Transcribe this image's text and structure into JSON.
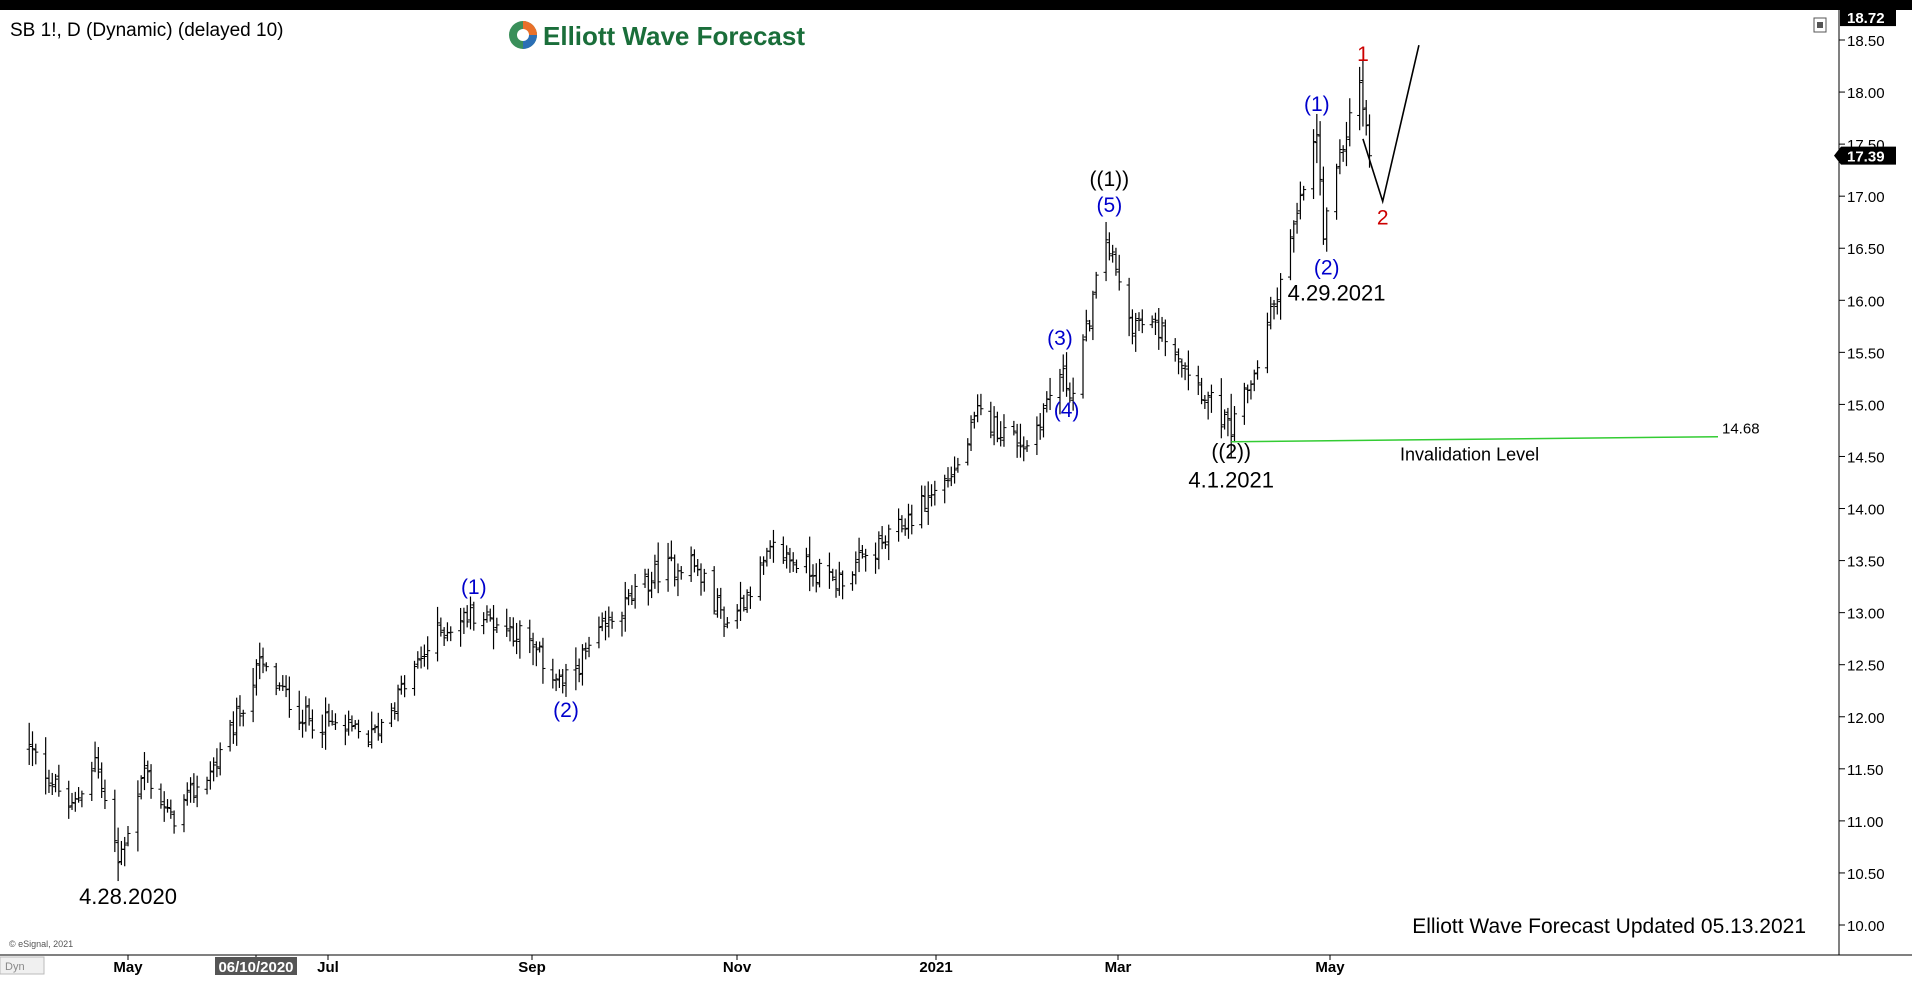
{
  "header": {
    "symbol_title": "SB 1!, D (Dynamic) (delayed 10)",
    "brand": "Elliott Wave Forecast",
    "copyright": "© eSignal, 2021",
    "updated_note": "Elliott Wave Forecast Updated 05.13.2021",
    "corner_label": "Dyn"
  },
  "colors": {
    "price_bars": "#000000",
    "wave_blue": "#0000cc",
    "wave_red": "#cc0000",
    "invalidation_line": "#33cc33",
    "brand_green": "#1a6e3a"
  },
  "chart_data": {
    "type": "bar",
    "ylim": [
      9.8,
      18.9
    ],
    "y_ticks": [
      "18.50",
      "18.00",
      "17.50",
      "17.00",
      "16.50",
      "16.00",
      "15.50",
      "15.00",
      "14.50",
      "14.00",
      "13.50",
      "13.00",
      "12.50",
      "12.00",
      "11.50",
      "11.00",
      "10.50",
      "10.00"
    ],
    "top_price_label": "18.72",
    "last_price": "17.39",
    "x_ticks": [
      "May",
      "06/10/2020",
      "Jul",
      "Sep",
      "Nov",
      "2021",
      "Mar",
      "May"
    ],
    "price_path_anchors": [
      {
        "date": "2020-04-01",
        "price": 11.7
      },
      {
        "date": "2020-04-14",
        "price": 11.1
      },
      {
        "date": "2020-04-21",
        "price": 11.6
      },
      {
        "date": "2020-04-28",
        "price": 10.6
      },
      {
        "date": "2020-05-06",
        "price": 11.5
      },
      {
        "date": "2020-05-14",
        "price": 11.0
      },
      {
        "date": "2020-05-29",
        "price": 11.6
      },
      {
        "date": "2020-06-10",
        "price": 12.5
      },
      {
        "date": "2020-06-23",
        "price": 12.0
      },
      {
        "date": "2020-07-14",
        "price": 11.8
      },
      {
        "date": "2020-08-03",
        "price": 12.8
      },
      {
        "date": "2020-08-14",
        "price": 13.0
      },
      {
        "date": "2020-08-28",
        "price": 12.8
      },
      {
        "date": "2020-09-10",
        "price": 12.3
      },
      {
        "date": "2020-09-24",
        "price": 12.9
      },
      {
        "date": "2020-10-09",
        "price": 13.4
      },
      {
        "date": "2020-10-19",
        "price": 13.5
      },
      {
        "date": "2020-10-30",
        "price": 12.9
      },
      {
        "date": "2020-11-13",
        "price": 13.6
      },
      {
        "date": "2020-12-02",
        "price": 13.3
      },
      {
        "date": "2020-12-18",
        "price": 13.7
      },
      {
        "date": "2021-01-08",
        "price": 14.4
      },
      {
        "date": "2021-01-14",
        "price": 14.9
      },
      {
        "date": "2021-01-29",
        "price": 14.6
      },
      {
        "date": "2021-02-08",
        "price": 15.3
      },
      {
        "date": "2021-02-12",
        "price": 15.1
      },
      {
        "date": "2021-02-22",
        "price": 16.6
      },
      {
        "date": "2021-03-01",
        "price": 15.8
      },
      {
        "date": "2021-03-12",
        "price": 15.7
      },
      {
        "date": "2021-03-22",
        "price": 15.2
      },
      {
        "date": "2021-04-01",
        "price": 14.72
      },
      {
        "date": "2021-04-09",
        "price": 15.4
      },
      {
        "date": "2021-04-21",
        "price": 16.8
      },
      {
        "date": "2021-04-27",
        "price": 17.6
      },
      {
        "date": "2021-04-29",
        "price": 16.6
      },
      {
        "date": "2021-05-05",
        "price": 17.5
      },
      {
        "date": "2021-05-10",
        "price": 18.1
      },
      {
        "date": "2021-05-13",
        "price": 17.4
      }
    ],
    "invalidation": {
      "price": 14.68,
      "value_label": "14.68",
      "label": "Invalidation Level"
    },
    "projection": [
      {
        "date": "2021-05-11",
        "price": 17.55
      },
      {
        "date": "2021-05-17",
        "price": 16.95
      },
      {
        "date": "2021-05-28",
        "price": 18.45
      }
    ],
    "wave_labels": [
      {
        "text": "(1)",
        "date": "2020-08-14",
        "price": 13.18,
        "color": "blue"
      },
      {
        "text": "(2)",
        "date": "2020-09-11",
        "price": 12.0,
        "color": "blue"
      },
      {
        "text": "(3)",
        "date": "2021-02-08",
        "price": 15.57,
        "color": "blue"
      },
      {
        "text": "(4)",
        "date": "2021-02-10",
        "price": 14.88,
        "color": "blue"
      },
      {
        "text": "(5)",
        "date": "2021-02-23",
        "price": 16.85,
        "color": "blue"
      },
      {
        "text": "((1))",
        "date": "2021-02-23",
        "price": 17.1,
        "color": "black"
      },
      {
        "text": "((2))",
        "date": "2021-04-01",
        "price": 14.48,
        "color": "black"
      },
      {
        "text": "(1)",
        "date": "2021-04-27",
        "price": 17.82,
        "color": "blue"
      },
      {
        "text": "(2)",
        "date": "2021-04-30",
        "price": 16.25,
        "color": "blue"
      },
      {
        "text": "1",
        "date": "2021-05-11",
        "price": 18.3,
        "color": "red"
      },
      {
        "text": "2",
        "date": "2021-05-17",
        "price": 16.73,
        "color": "red"
      }
    ],
    "date_annotations": [
      {
        "text": "4.28.2020",
        "date": "2020-05-01",
        "price": 10.2
      },
      {
        "text": "4.1.2021",
        "date": "2021-04-01",
        "price": 14.2
      },
      {
        "text": "4.29.2021",
        "date": "2021-05-03",
        "price": 16.0
      }
    ]
  }
}
